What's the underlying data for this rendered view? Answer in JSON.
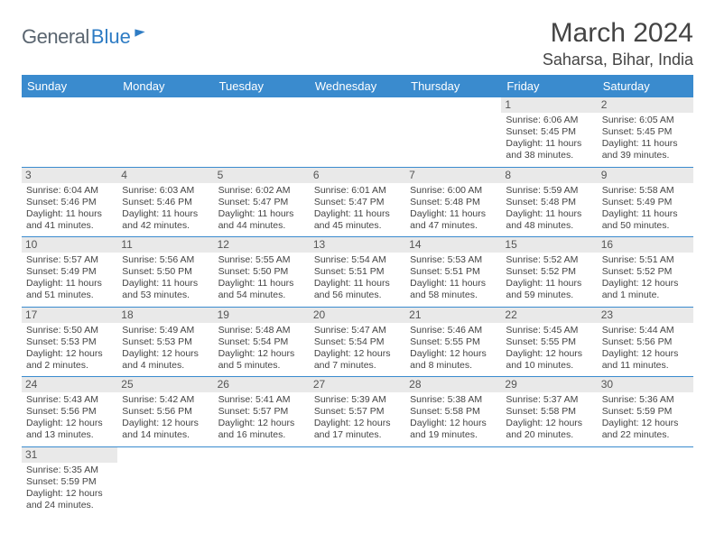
{
  "logo": {
    "general": "General",
    "blue": "Blue"
  },
  "title": "March 2024",
  "location": "Saharsa, Bihar, India",
  "colors": {
    "header_bg": "#3a8bce",
    "daynum_bg": "#e9e9e9",
    "row_border": "#3a8bce",
    "text": "#444444"
  },
  "weekdays": [
    "Sunday",
    "Monday",
    "Tuesday",
    "Wednesday",
    "Thursday",
    "Friday",
    "Saturday"
  ],
  "weeks": [
    [
      null,
      null,
      null,
      null,
      null,
      {
        "n": "1",
        "sunrise": "6:06 AM",
        "sunset": "5:45 PM",
        "daylight": "11 hours and 38 minutes."
      },
      {
        "n": "2",
        "sunrise": "6:05 AM",
        "sunset": "5:45 PM",
        "daylight": "11 hours and 39 minutes."
      }
    ],
    [
      {
        "n": "3",
        "sunrise": "6:04 AM",
        "sunset": "5:46 PM",
        "daylight": "11 hours and 41 minutes."
      },
      {
        "n": "4",
        "sunrise": "6:03 AM",
        "sunset": "5:46 PM",
        "daylight": "11 hours and 42 minutes."
      },
      {
        "n": "5",
        "sunrise": "6:02 AM",
        "sunset": "5:47 PM",
        "daylight": "11 hours and 44 minutes."
      },
      {
        "n": "6",
        "sunrise": "6:01 AM",
        "sunset": "5:47 PM",
        "daylight": "11 hours and 45 minutes."
      },
      {
        "n": "7",
        "sunrise": "6:00 AM",
        "sunset": "5:48 PM",
        "daylight": "11 hours and 47 minutes."
      },
      {
        "n": "8",
        "sunrise": "5:59 AM",
        "sunset": "5:48 PM",
        "daylight": "11 hours and 48 minutes."
      },
      {
        "n": "9",
        "sunrise": "5:58 AM",
        "sunset": "5:49 PM",
        "daylight": "11 hours and 50 minutes."
      }
    ],
    [
      {
        "n": "10",
        "sunrise": "5:57 AM",
        "sunset": "5:49 PM",
        "daylight": "11 hours and 51 minutes."
      },
      {
        "n": "11",
        "sunrise": "5:56 AM",
        "sunset": "5:50 PM",
        "daylight": "11 hours and 53 minutes."
      },
      {
        "n": "12",
        "sunrise": "5:55 AM",
        "sunset": "5:50 PM",
        "daylight": "11 hours and 54 minutes."
      },
      {
        "n": "13",
        "sunrise": "5:54 AM",
        "sunset": "5:51 PM",
        "daylight": "11 hours and 56 minutes."
      },
      {
        "n": "14",
        "sunrise": "5:53 AM",
        "sunset": "5:51 PM",
        "daylight": "11 hours and 58 minutes."
      },
      {
        "n": "15",
        "sunrise": "5:52 AM",
        "sunset": "5:52 PM",
        "daylight": "11 hours and 59 minutes."
      },
      {
        "n": "16",
        "sunrise": "5:51 AM",
        "sunset": "5:52 PM",
        "daylight": "12 hours and 1 minute."
      }
    ],
    [
      {
        "n": "17",
        "sunrise": "5:50 AM",
        "sunset": "5:53 PM",
        "daylight": "12 hours and 2 minutes."
      },
      {
        "n": "18",
        "sunrise": "5:49 AM",
        "sunset": "5:53 PM",
        "daylight": "12 hours and 4 minutes."
      },
      {
        "n": "19",
        "sunrise": "5:48 AM",
        "sunset": "5:54 PM",
        "daylight": "12 hours and 5 minutes."
      },
      {
        "n": "20",
        "sunrise": "5:47 AM",
        "sunset": "5:54 PM",
        "daylight": "12 hours and 7 minutes."
      },
      {
        "n": "21",
        "sunrise": "5:46 AM",
        "sunset": "5:55 PM",
        "daylight": "12 hours and 8 minutes."
      },
      {
        "n": "22",
        "sunrise": "5:45 AM",
        "sunset": "5:55 PM",
        "daylight": "12 hours and 10 minutes."
      },
      {
        "n": "23",
        "sunrise": "5:44 AM",
        "sunset": "5:56 PM",
        "daylight": "12 hours and 11 minutes."
      }
    ],
    [
      {
        "n": "24",
        "sunrise": "5:43 AM",
        "sunset": "5:56 PM",
        "daylight": "12 hours and 13 minutes."
      },
      {
        "n": "25",
        "sunrise": "5:42 AM",
        "sunset": "5:56 PM",
        "daylight": "12 hours and 14 minutes."
      },
      {
        "n": "26",
        "sunrise": "5:41 AM",
        "sunset": "5:57 PM",
        "daylight": "12 hours and 16 minutes."
      },
      {
        "n": "27",
        "sunrise": "5:39 AM",
        "sunset": "5:57 PM",
        "daylight": "12 hours and 17 minutes."
      },
      {
        "n": "28",
        "sunrise": "5:38 AM",
        "sunset": "5:58 PM",
        "daylight": "12 hours and 19 minutes."
      },
      {
        "n": "29",
        "sunrise": "5:37 AM",
        "sunset": "5:58 PM",
        "daylight": "12 hours and 20 minutes."
      },
      {
        "n": "30",
        "sunrise": "5:36 AM",
        "sunset": "5:59 PM",
        "daylight": "12 hours and 22 minutes."
      }
    ],
    [
      {
        "n": "31",
        "sunrise": "5:35 AM",
        "sunset": "5:59 PM",
        "daylight": "12 hours and 24 minutes."
      },
      null,
      null,
      null,
      null,
      null,
      null
    ]
  ],
  "labels": {
    "sunrise": "Sunrise: ",
    "sunset": "Sunset: ",
    "daylight": "Daylight: "
  }
}
